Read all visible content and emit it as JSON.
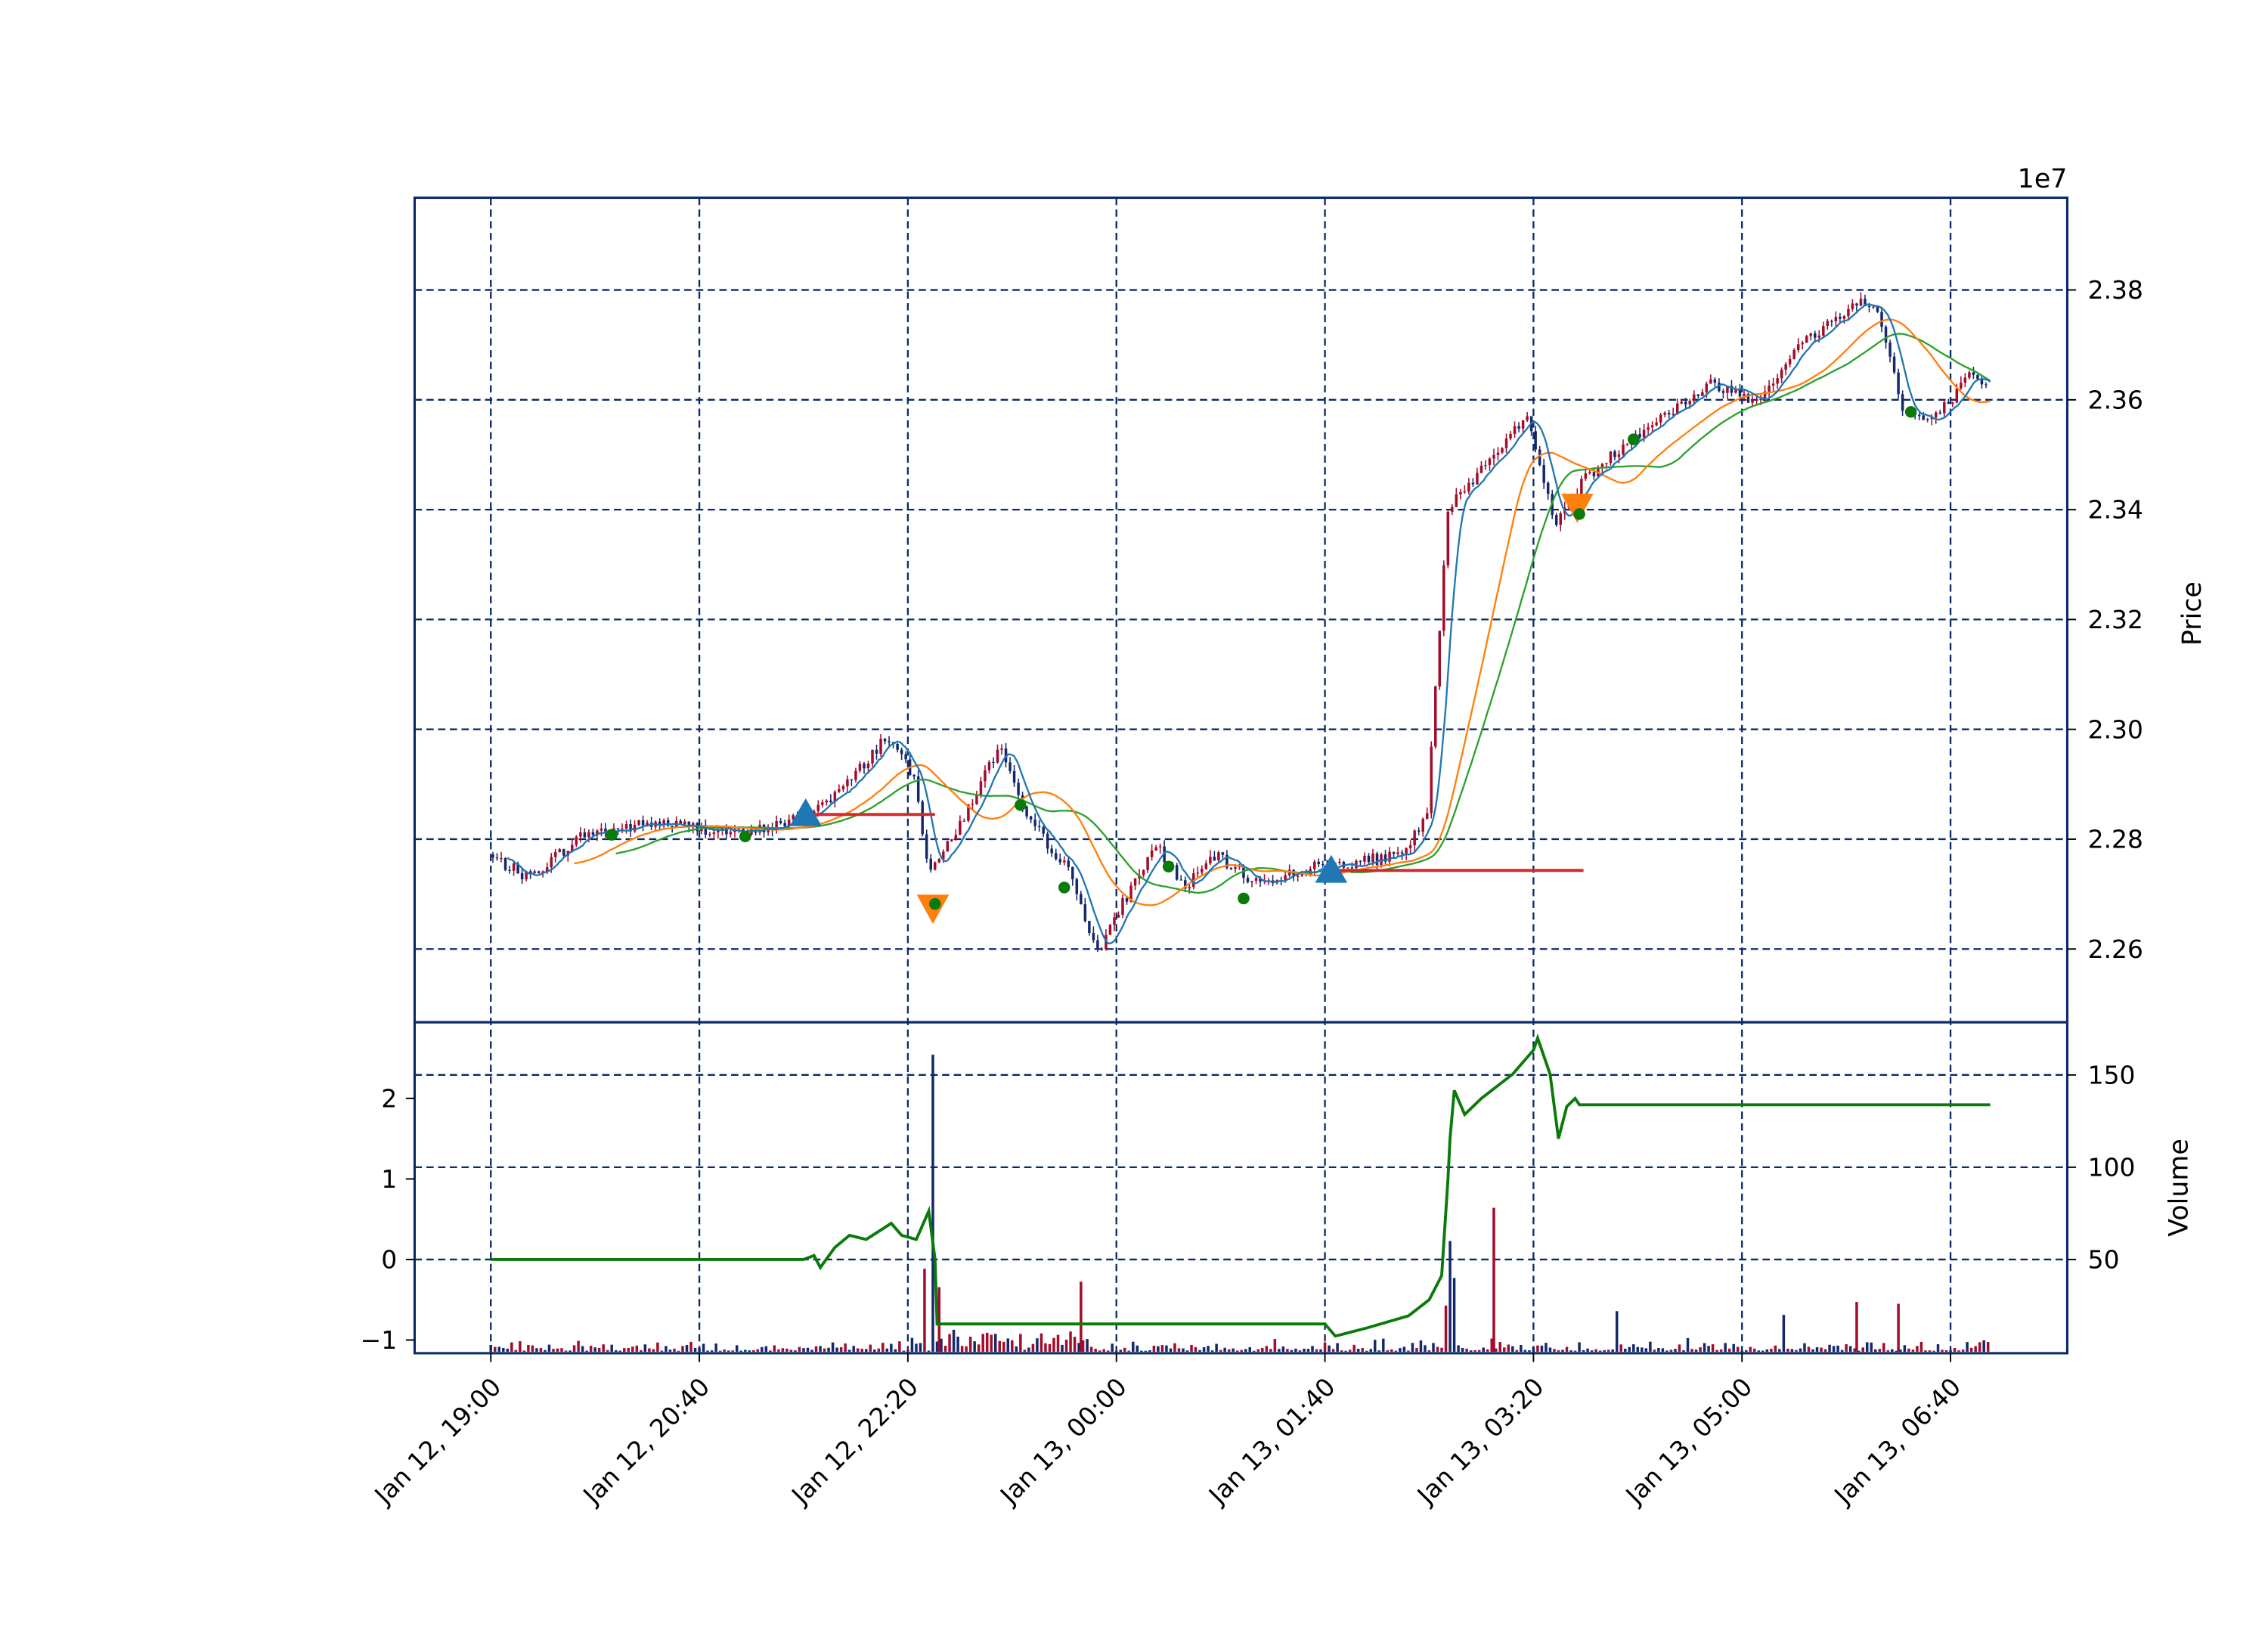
{
  "chart_data": [
    {
      "panel": "price",
      "type": "candlestick",
      "ylabel": "Price",
      "y_offset_label": "1e7",
      "ylim": [
        2.248,
        2.397
      ],
      "yticks": [
        2.26,
        2.28,
        2.3,
        2.32,
        2.34,
        2.36,
        2.38
      ],
      "ytick_labels": [
        "2.26",
        "2.28",
        "2.30",
        "2.32",
        "2.34",
        "2.36",
        "2.38"
      ],
      "y_axis_side": "right",
      "grid": true,
      "x_start": "Jan 12, 19:00",
      "x_range_minutes_from_start": [
        -37,
        755
      ],
      "xticks_minutes_from_start": [
        0,
        100,
        200,
        300,
        400,
        500,
        600,
        700
      ],
      "xtick_labels": [
        "Jan 12, 19:00",
        "Jan 12, 20:40",
        "Jan 12, 22:20",
        "Jan 13, 00:00",
        "Jan 13, 01:40",
        "Jan 13, 03:20",
        "Jan 13, 05:00",
        "Jan 13, 06:40"
      ],
      "close_path_minutes_price": [
        [
          0,
          2.277
        ],
        [
          19,
          2.273
        ],
        [
          46,
          2.281
        ],
        [
          81,
          2.283
        ],
        [
          123,
          2.281
        ],
        [
          151,
          2.284
        ],
        [
          172,
          2.29
        ],
        [
          191,
          2.299
        ],
        [
          204,
          2.291
        ],
        [
          211,
          2.275
        ],
        [
          221,
          2.279
        ],
        [
          245,
          2.297
        ],
        [
          256,
          2.285
        ],
        [
          277,
          2.275
        ],
        [
          293,
          2.259
        ],
        [
          302,
          2.267
        ],
        [
          320,
          2.279
        ],
        [
          334,
          2.271
        ],
        [
          348,
          2.277
        ],
        [
          369,
          2.272
        ],
        [
          397,
          2.275
        ],
        [
          439,
          2.277
        ],
        [
          450,
          2.285
        ],
        [
          460,
          2.34
        ],
        [
          481,
          2.35
        ],
        [
          499,
          2.357
        ],
        [
          511,
          2.337
        ],
        [
          524,
          2.345
        ],
        [
          551,
          2.354
        ],
        [
          587,
          2.363
        ],
        [
          608,
          2.36
        ],
        [
          629,
          2.37
        ],
        [
          657,
          2.378
        ],
        [
          667,
          2.376
        ],
        [
          678,
          2.358
        ],
        [
          692,
          2.356
        ],
        [
          710,
          2.364
        ],
        [
          719,
          2.362
        ]
      ],
      "moving_averages": [
        {
          "window": 8,
          "color": "#1f77b4"
        },
        {
          "window": 40,
          "color": "#ff7f0e"
        },
        {
          "window": 60,
          "color": "#2ca02c"
        }
      ],
      "buy_markers": [
        [
          151,
          2.2845
        ],
        [
          403,
          2.2742
        ]
      ],
      "sell_markers": [
        [
          212,
          2.2675
        ],
        [
          521,
          2.3405
        ]
      ],
      "dots": [
        [
          58,
          2.2808
        ],
        [
          122,
          2.2805
        ],
        [
          213,
          2.2682
        ],
        [
          254,
          2.2862
        ],
        [
          275,
          2.2712
        ],
        [
          325,
          2.275
        ],
        [
          361,
          2.2692
        ],
        [
          522,
          2.3392
        ],
        [
          548,
          2.3528
        ],
        [
          681,
          2.3578
        ]
      ],
      "position_lines": [
        {
          "from": 151,
          "to": 213,
          "price": 2.2845
        },
        {
          "from": 400,
          "to": 524,
          "price": 2.2743
        }
      ],
      "colors": {
        "up": "#a30c2a",
        "down": "#15286b",
        "buy": "#1f77b4",
        "sell": "#ff7f0e",
        "dot": "#0a7a0a",
        "position": "#d62728",
        "grid": "#0b2a6b"
      }
    },
    {
      "panel": "volume",
      "type": "bar+line",
      "ylabel": "Volume",
      "right_ylim": [
        0,
        176
      ],
      "right_yticks": [
        50,
        100,
        150
      ],
      "right_ytick_labels": [
        "50",
        "100",
        "150"
      ],
      "left_ylim": [
        -1.15,
        2.9
      ],
      "left_yticks": [
        -1,
        0,
        1,
        2
      ],
      "left_ytick_labels": [
        "−1",
        "0",
        "1",
        "2"
      ],
      "volume_spikes_minutes": [
        [
          212,
          161
        ],
        [
          208,
          45
        ],
        [
          215,
          35
        ],
        [
          460,
          60
        ],
        [
          462,
          40
        ],
        [
          481,
          78
        ],
        [
          458,
          25
        ],
        [
          283,
          38
        ],
        [
          540,
          22
        ],
        [
          655,
          27
        ],
        [
          675,
          26
        ],
        [
          620,
          20
        ]
      ],
      "line_color": "#0a7a0a",
      "line_left_axis": [
        [
          0,
          0
        ],
        [
          150,
          0
        ],
        [
          155,
          0.05
        ],
        [
          158,
          -0.1
        ],
        [
          165,
          0.15
        ],
        [
          172,
          0.3
        ],
        [
          180,
          0.25
        ],
        [
          192,
          0.45
        ],
        [
          197,
          0.3
        ],
        [
          204,
          0.25
        ],
        [
          210,
          0.6
        ],
        [
          213,
          0.0
        ],
        [
          214,
          -0.8
        ],
        [
          400,
          -0.8
        ],
        [
          405,
          -0.95
        ],
        [
          420,
          -0.85
        ],
        [
          440,
          -0.7
        ],
        [
          450,
          -0.5
        ],
        [
          456,
          -0.2
        ],
        [
          459,
          1.0
        ],
        [
          460,
          1.5
        ],
        [
          462,
          2.1
        ],
        [
          467,
          1.8
        ],
        [
          475,
          2.0
        ],
        [
          490,
          2.3
        ],
        [
          500,
          2.6
        ],
        [
          502,
          2.75
        ],
        [
          508,
          2.3
        ],
        [
          512,
          1.5
        ],
        [
          516,
          1.9
        ],
        [
          520,
          2.0
        ],
        [
          522,
          1.92
        ],
        [
          719,
          1.92
        ]
      ]
    }
  ]
}
